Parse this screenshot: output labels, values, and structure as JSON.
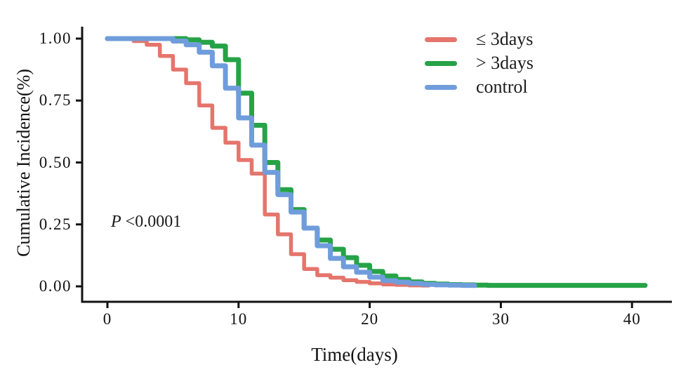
{
  "chart_data": {
    "type": "line",
    "subtype": "step-survival-curves",
    "title": "",
    "xlabel": "Time(days)",
    "ylabel": "Cumulative Incidence(%)",
    "xlim": [
      0,
      41
    ],
    "ylim": [
      0,
      1
    ],
    "grid": "off",
    "legend_position": "top-right-inside",
    "annotation": "P <0.0001",
    "axis_color": "#121212",
    "x_ticks": [
      {
        "t": 0,
        "label": "0"
      },
      {
        "t": 10,
        "label": "10"
      },
      {
        "t": 20,
        "label": "20"
      },
      {
        "t": 30,
        "label": "30"
      },
      {
        "t": 40,
        "label": "40"
      }
    ],
    "y_ticks": [
      {
        "v": 1.0,
        "label": "1.00"
      },
      {
        "v": 0.75,
        "label": "0.75"
      },
      {
        "v": 0.5,
        "label": "0.50"
      },
      {
        "v": 0.25,
        "label": "0.25"
      },
      {
        "v": 0.0,
        "label": "0.00"
      }
    ],
    "series": [
      {
        "name": "≤ 3days",
        "color": "#E5756C",
        "stroke_width": 5.5,
        "end_x": 24.5,
        "steps": [
          [
            0,
            1.0
          ],
          [
            2,
            0.99
          ],
          [
            3,
            0.975
          ],
          [
            4,
            0.93
          ],
          [
            5,
            0.875
          ],
          [
            6,
            0.82
          ],
          [
            7,
            0.73
          ],
          [
            8,
            0.64
          ],
          [
            9,
            0.58
          ],
          [
            10,
            0.51
          ],
          [
            11,
            0.455
          ],
          [
            12,
            0.29
          ],
          [
            13,
            0.21
          ],
          [
            14,
            0.13
          ],
          [
            15,
            0.07
          ],
          [
            16,
            0.045
          ],
          [
            17,
            0.035
          ],
          [
            18,
            0.025
          ],
          [
            19,
            0.018
          ],
          [
            20,
            0.012
          ],
          [
            21,
            0.008
          ],
          [
            22,
            0.006
          ],
          [
            23,
            0.004
          ],
          [
            24,
            0.003
          ]
        ]
      },
      {
        "name": "> 3days",
        "color": "#26A347",
        "stroke_width": 7,
        "end_x": 41,
        "steps": [
          [
            0,
            1.0
          ],
          [
            6,
            0.995
          ],
          [
            7,
            0.985
          ],
          [
            8,
            0.97
          ],
          [
            9,
            0.915
          ],
          [
            10,
            0.78
          ],
          [
            11,
            0.65
          ],
          [
            12,
            0.5
          ],
          [
            13,
            0.39
          ],
          [
            14,
            0.31
          ],
          [
            15,
            0.235
          ],
          [
            16,
            0.187
          ],
          [
            17,
            0.15
          ],
          [
            18,
            0.116
          ],
          [
            19,
            0.085
          ],
          [
            20,
            0.06
          ],
          [
            21,
            0.042
          ],
          [
            22,
            0.028
          ],
          [
            23,
            0.018
          ],
          [
            24,
            0.012
          ],
          [
            25,
            0.009
          ],
          [
            26,
            0.007
          ],
          [
            27,
            0.006
          ],
          [
            28,
            0.005
          ],
          [
            29,
            0.004
          ]
        ]
      },
      {
        "name": "control",
        "color": "#6F9DDC",
        "stroke_width": 7,
        "end_x": 28,
        "steps": [
          [
            0,
            1.0
          ],
          [
            5,
            0.99
          ],
          [
            6,
            0.975
          ],
          [
            7,
            0.945
          ],
          [
            8,
            0.89
          ],
          [
            9,
            0.8
          ],
          [
            10,
            0.68
          ],
          [
            11,
            0.57
          ],
          [
            12,
            0.46
          ],
          [
            13,
            0.37
          ],
          [
            14,
            0.3
          ],
          [
            15,
            0.235
          ],
          [
            16,
            0.164
          ],
          [
            17,
            0.113
          ],
          [
            18,
            0.079
          ],
          [
            19,
            0.057
          ],
          [
            20,
            0.037
          ],
          [
            21,
            0.023
          ],
          [
            22,
            0.017
          ],
          [
            23,
            0.012
          ],
          [
            24,
            0.008
          ],
          [
            25,
            0.006
          ],
          [
            26,
            0.005
          ],
          [
            27,
            0.004
          ],
          [
            28,
            0.003
          ]
        ]
      }
    ]
  },
  "annotation": {
    "p_symbol": "P",
    "p_text": " <0.0001"
  },
  "legend": {
    "items": [
      {
        "label": "≤ 3days",
        "color": "#E5756C"
      },
      {
        "label": "> 3days",
        "color": "#26A347"
      },
      {
        "label": "control",
        "color": "#6F9DDC"
      }
    ]
  }
}
